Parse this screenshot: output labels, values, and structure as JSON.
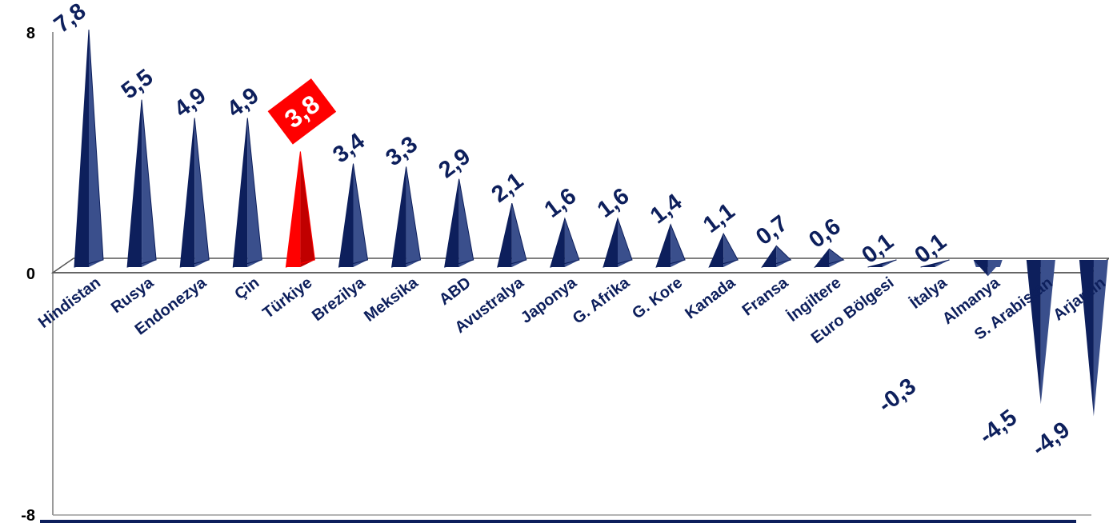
{
  "chart_data": {
    "type": "bar",
    "categories": [
      "Hindistan",
      "Rusya",
      "Endonezya",
      "Çin",
      "Türkiye",
      "Brezilya",
      "Meksika",
      "ABD",
      "Avustralya",
      "Japonya",
      "G. Afrika",
      "G. Kore",
      "Kanada",
      "Fransa",
      "İngiltere",
      "Euro Bölgesi",
      "İtalya",
      "Almanya",
      "S. Arabistan",
      "Arjantin"
    ],
    "values": [
      7.8,
      5.5,
      4.9,
      4.9,
      3.8,
      3.4,
      3.3,
      2.9,
      2.1,
      1.6,
      1.6,
      1.4,
      1.1,
      0.7,
      0.6,
      0.1,
      0.1,
      -0.3,
      -4.5,
      -4.9
    ],
    "value_labels": [
      "7,8",
      "5,5",
      "4,9",
      "4,9",
      "3,8",
      "3,4",
      "3,3",
      "2,9",
      "2,1",
      "1,6",
      "1,6",
      "1,4",
      "1,1",
      "0,7",
      "0,6",
      "0,1",
      "0,1",
      "-0,3",
      "-4,5",
      "-4,9"
    ],
    "highlighted_category": "Türkiye",
    "yticks": [
      "8",
      "0",
      "-8"
    ],
    "ylim": [
      -8,
      8
    ],
    "title": "",
    "xlabel": "",
    "ylabel": "",
    "grid": false,
    "legend": "none",
    "colors": {
      "bar": "#0d1f5c",
      "bar_side": "#3a4f8c",
      "highlight": "#ff0000",
      "highlight_side": "#c00000",
      "label": "#0d1f5c",
      "axis": "#9a9a9a"
    }
  }
}
